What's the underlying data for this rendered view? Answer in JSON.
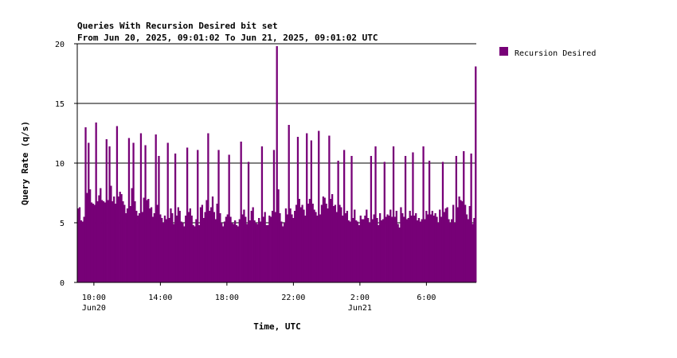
{
  "chart_data": {
    "type": "bar",
    "title": "Queries With Recursion Desired bit set",
    "subtitle": "From Jun 20, 2025, 09:01:02 To Jun 21, 2025, 09:01:02 UTC",
    "xlabel": "Time, UTC",
    "ylabel": "Query Rate (q/s)",
    "x_range_hours": [
      9.0,
      33.0
    ],
    "ylim": [
      0,
      20
    ],
    "y_ticks": [
      0,
      5,
      10,
      15,
      20
    ],
    "x_ticks": [
      {
        "hour": 10,
        "label": "10:00",
        "date": "Jun20"
      },
      {
        "hour": 14,
        "label": "14:00",
        "date": ""
      },
      {
        "hour": 18,
        "label": "18:00",
        "date": ""
      },
      {
        "hour": 22,
        "label": "22:00",
        "date": ""
      },
      {
        "hour": 26,
        "label": "2:00",
        "date": "Jun21"
      },
      {
        "hour": 30,
        "label": "6:00",
        "date": ""
      }
    ],
    "grid": "horizontal",
    "legend_position": "top-right",
    "series": [
      {
        "name": "Recursion Desired",
        "color": "#770077",
        "values": [
          6.2,
          6.3,
          5.2,
          5.1,
          5.5,
          13.0,
          7.5,
          11.7,
          7.8,
          6.7,
          6.6,
          6.5,
          13.4,
          6.8,
          7.3,
          7.9,
          6.9,
          6.8,
          6.7,
          12.0,
          6.9,
          11.4,
          8.1,
          6.8,
          7.2,
          6.6,
          13.1,
          7.2,
          7.6,
          7.4,
          6.8,
          6.5,
          5.8,
          6.2,
          12.1,
          6.4,
          7.9,
          11.7,
          6.8,
          6.0,
          5.6,
          5.8,
          12.5,
          5.9,
          7.1,
          11.5,
          6.9,
          7.0,
          6.2,
          6.3,
          5.5,
          5.8,
          12.4,
          6.5,
          10.6,
          5.7,
          5.4,
          5.0,
          5.6,
          5.3,
          11.7,
          5.4,
          6.2,
          5.8,
          4.9,
          10.8,
          5.6,
          6.3,
          6.0,
          5.1,
          5.0,
          4.7,
          5.6,
          11.3,
          5.9,
          6.2,
          5.6,
          4.8,
          4.7,
          5.3,
          11.1,
          4.8,
          6.3,
          6.5,
          5.4,
          5.9,
          6.9,
          12.5,
          6.0,
          6.3,
          7.2,
          5.9,
          5.3,
          6.6,
          11.1,
          5.8,
          5.0,
          4.7,
          5.1,
          5.5,
          5.7,
          10.7,
          5.5,
          5.0,
          4.9,
          5.2,
          4.8,
          4.7,
          5.3,
          11.8,
          5.7,
          6.1,
          5.5,
          4.9,
          10.1,
          5.2,
          6.0,
          6.3,
          5.2,
          5.0,
          4.9,
          5.4,
          5.1,
          11.4,
          5.5,
          5.9,
          4.8,
          4.8,
          5.6,
          5.5,
          6.0,
          11.1,
          5.9,
          19.8,
          7.8,
          5.8,
          5.1,
          4.7,
          5.0,
          6.2,
          5.7,
          13.2,
          6.2,
          5.7,
          5.4,
          6.0,
          6.5,
          12.2,
          7.0,
          6.3,
          6.5,
          6.1,
          5.6,
          12.5,
          6.6,
          7.0,
          11.9,
          6.6,
          6.1,
          5.9,
          5.6,
          12.7,
          5.7,
          6.5,
          7.2,
          7.1,
          6.6,
          6.2,
          12.3,
          7.0,
          7.4,
          6.4,
          6.5,
          5.9,
          10.2,
          6.5,
          6.3,
          5.6,
          11.1,
          5.8,
          6.0,
          5.2,
          5.1,
          10.6,
          5.4,
          6.1,
          5.2,
          5.1,
          4.8,
          5.6,
          5.3,
          5.3,
          5.6,
          6.1,
          5.4,
          5.0,
          10.6,
          5.3,
          5.7,
          11.4,
          5.4,
          4.8,
          5.8,
          5.2,
          5.3,
          10.1,
          5.5,
          5.7,
          5.6,
          6.1,
          5.5,
          11.4,
          5.5,
          6.0,
          4.9,
          4.6,
          6.3,
          5.8,
          5.5,
          10.6,
          5.3,
          5.4,
          6.0,
          5.6,
          10.9,
          5.6,
          5.8,
          5.2,
          5.4,
          5.1,
          5.3,
          11.4,
          5.3,
          6.0,
          5.7,
          10.2,
          5.7,
          6.0,
          5.6,
          5.8,
          5.5,
          5.0,
          6.1,
          5.5,
          10.1,
          5.9,
          6.2,
          6.3,
          5.3,
          5.0,
          5.3,
          6.5,
          5.0,
          10.6,
          6.3,
          7.2,
          6.9,
          6.8,
          11.0,
          6.5,
          5.7,
          5.3,
          6.4,
          10.8,
          4.9,
          5.4,
          18.1
        ]
      }
    ]
  }
}
